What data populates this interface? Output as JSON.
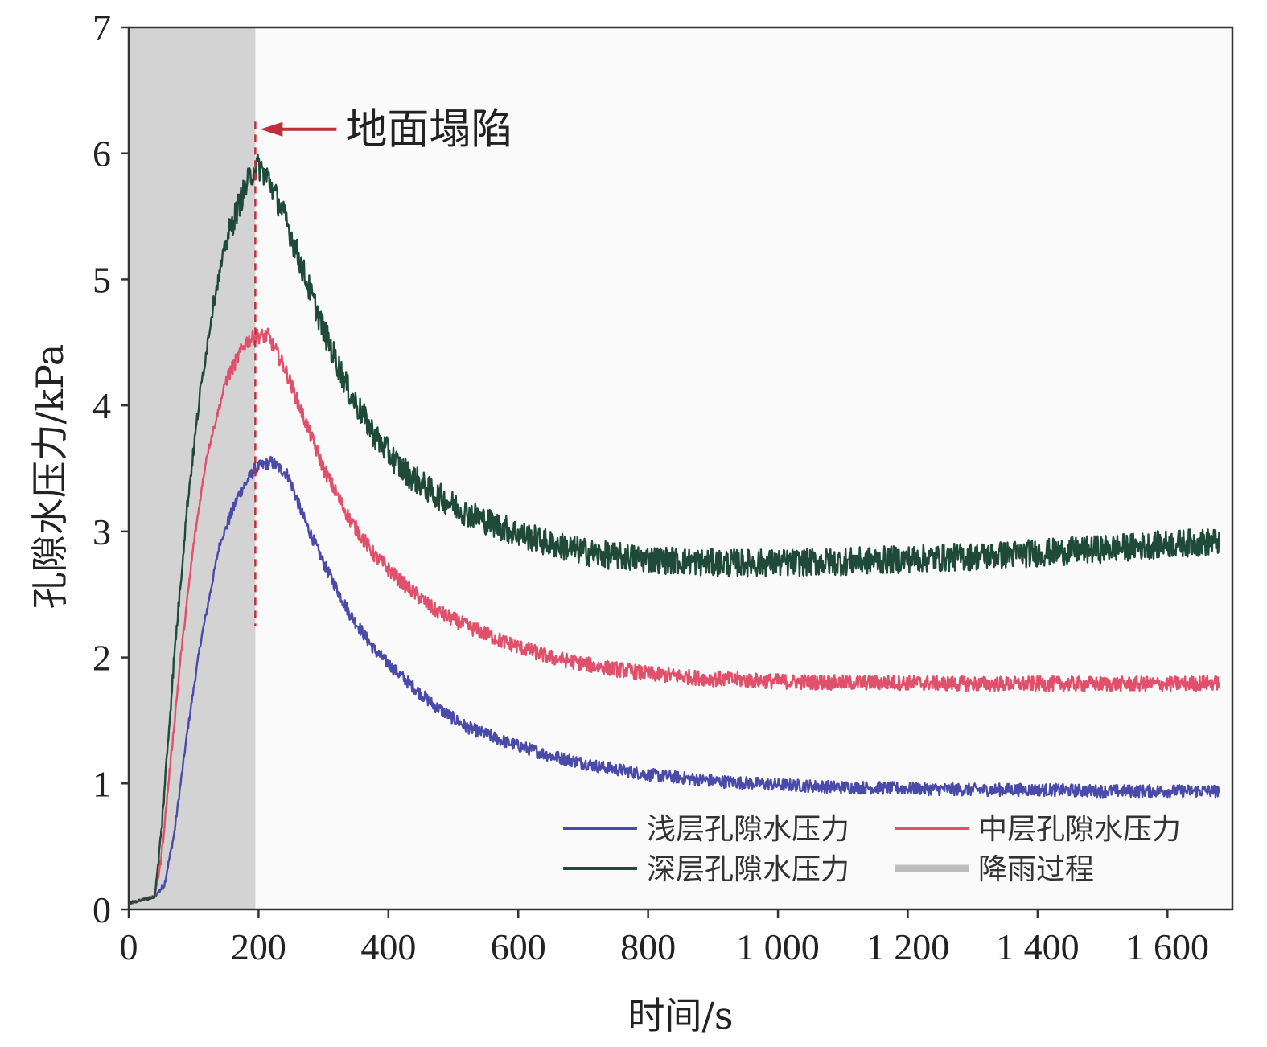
{
  "chart_data": {
    "type": "line",
    "title": "",
    "xlabel": "时间/s",
    "ylabel": "孔隙水压力/kPa",
    "xlim": [
      0,
      1700
    ],
    "ylim": [
      0,
      7
    ],
    "xticks": [
      0,
      200,
      400,
      600,
      800,
      1000,
      1200,
      1400,
      1600
    ],
    "xtick_labels": [
      "0",
      "200",
      "400",
      "600",
      "800",
      "1 000",
      "1 200",
      "1 400",
      "1 600"
    ],
    "yticks": [
      0,
      1,
      2,
      3,
      4,
      5,
      6,
      7
    ],
    "ytick_labels": [
      "0",
      "1",
      "2",
      "3",
      "4",
      "5",
      "6",
      "7"
    ],
    "grid": false,
    "legend_position": "bottom-right",
    "rain_period": {
      "name": "降雨过程",
      "x_start": 0,
      "x_end": 195,
      "color": "#d3d3d3"
    },
    "annotation": {
      "text": "地面塌陷",
      "x": 195,
      "y": 6.2,
      "color": "#c0303c"
    },
    "series": [
      {
        "name": "浅层孔隙水压力",
        "color": "#4a4aaa",
        "x": [
          0,
          40,
          55,
          70,
          90,
          110,
          140,
          170,
          195,
          220,
          245,
          270,
          300,
          340,
          380,
          420,
          470,
          520,
          580,
          650,
          720,
          800,
          900,
          1000,
          1100,
          1200,
          1300,
          1400,
          1500,
          1600,
          1680
        ],
        "values": [
          0.05,
          0.1,
          0.2,
          0.6,
          1.4,
          2.1,
          2.9,
          3.3,
          3.5,
          3.55,
          3.45,
          3.1,
          2.75,
          2.35,
          2.05,
          1.85,
          1.62,
          1.45,
          1.33,
          1.22,
          1.14,
          1.07,
          1.02,
          0.99,
          0.97,
          0.96,
          0.95,
          0.95,
          0.94,
          0.94,
          0.94
        ]
      },
      {
        "name": "中层孔隙水压力",
        "color": "#e0506a",
        "x": [
          0,
          40,
          50,
          65,
          80,
          100,
          120,
          150,
          180,
          195,
          215,
          240,
          270,
          300,
          340,
          380,
          420,
          470,
          520,
          580,
          650,
          720,
          800,
          900,
          1000,
          1100,
          1200,
          1300,
          1400,
          1500,
          1600,
          1680
        ],
        "values": [
          0.05,
          0.1,
          0.4,
          1.2,
          2.0,
          2.9,
          3.6,
          4.2,
          4.5,
          4.55,
          4.55,
          4.3,
          3.9,
          3.5,
          3.1,
          2.8,
          2.6,
          2.38,
          2.25,
          2.12,
          2.0,
          1.93,
          1.87,
          1.83,
          1.81,
          1.8,
          1.8,
          1.79,
          1.79,
          1.79,
          1.79,
          1.8
        ]
      },
      {
        "name": "深层孔隙水压力",
        "color": "#1f4a3a",
        "x": [
          0,
          40,
          50,
          70,
          90,
          110,
          130,
          150,
          170,
          190,
          200,
          215,
          240,
          270,
          300,
          340,
          380,
          420,
          470,
          520,
          580,
          650,
          720,
          800,
          900,
          1000,
          1100,
          1200,
          1300,
          1400,
          1500,
          1600,
          1680
        ],
        "values": [
          0.05,
          0.1,
          0.6,
          2.0,
          3.2,
          4.1,
          4.8,
          5.3,
          5.6,
          5.85,
          5.9,
          5.8,
          5.5,
          5.05,
          4.6,
          4.1,
          3.75,
          3.5,
          3.3,
          3.15,
          3.02,
          2.9,
          2.82,
          2.78,
          2.75,
          2.75,
          2.76,
          2.78,
          2.8,
          2.83,
          2.86,
          2.9,
          2.92
        ]
      }
    ]
  }
}
